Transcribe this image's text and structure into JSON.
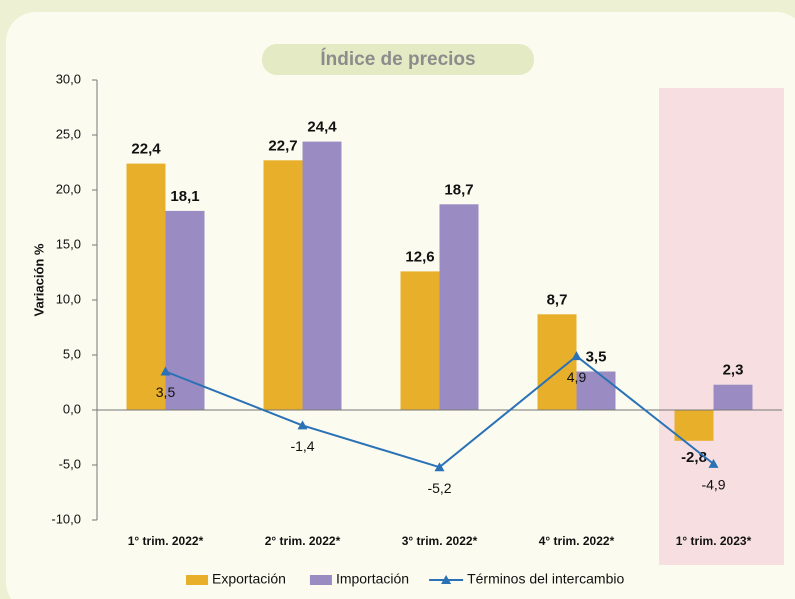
{
  "chart_data": {
    "type": "bar",
    "title": "Índice de precios",
    "y_label": "Variación %",
    "categories": [
      "1° trim. 2022*",
      "2° trim. 2022*",
      "3° trim. 2022*",
      "4° trim. 2022*",
      "1° trim. 2023*"
    ],
    "series": [
      {
        "name": "Exportación",
        "type": "bar",
        "color": "#e8af2b",
        "values": [
          22.4,
          22.7,
          12.6,
          8.7,
          -2.8
        ],
        "value_labels": [
          "22,4",
          "22,7",
          "12,6",
          "8,7",
          "-2,8"
        ]
      },
      {
        "name": "Importación",
        "type": "bar",
        "color": "#9a8cc2",
        "values": [
          18.1,
          24.4,
          18.7,
          3.5,
          2.3
        ],
        "value_labels": [
          "18,1",
          "24,4",
          "18,7",
          "3,5",
          "2,3"
        ]
      },
      {
        "name": "Términos del intercambio",
        "type": "line",
        "color": "#2a72b5",
        "values": [
          3.5,
          -1.4,
          -5.2,
          4.9,
          -4.9
        ],
        "value_labels": [
          "3,5",
          "-1,4",
          "-5,2",
          "4,9",
          "-4,9"
        ]
      }
    ],
    "ylim": [
      -10,
      30
    ],
    "yticks": [
      {
        "value": -10,
        "label": "-10,0"
      },
      {
        "value": -5,
        "label": "-5,0"
      },
      {
        "value": 0,
        "label": "0,0"
      },
      {
        "value": 5,
        "label": "5,0"
      },
      {
        "value": 10,
        "label": "10,0"
      },
      {
        "value": 15,
        "label": "15,0"
      },
      {
        "value": 20,
        "label": "20,0"
      },
      {
        "value": 25,
        "label": "25,0"
      },
      {
        "value": 30,
        "label": "30,0"
      }
    ],
    "highlight_category": 4,
    "highlight_color": "#f7dfe1",
    "legend": "bottom"
  }
}
